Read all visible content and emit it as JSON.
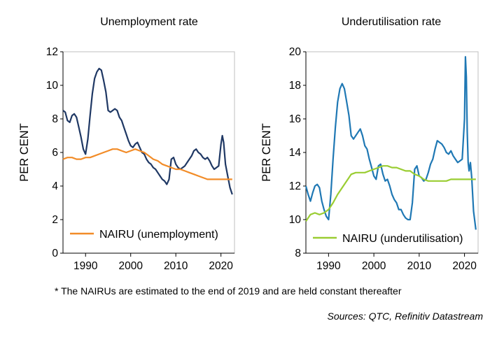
{
  "chart_data": [
    {
      "type": "line",
      "title": "Unemployment rate",
      "ylabel": "PER CENT",
      "xlim": [
        1985,
        2023
      ],
      "ylim": [
        0,
        12
      ],
      "yticks": [
        0,
        2,
        4,
        6,
        8,
        10,
        12
      ],
      "xticks": [
        1990,
        2000,
        2010,
        2020
      ],
      "legend": "bottom-left",
      "series": [
        {
          "name": "",
          "color": "#1f3864",
          "x": [
            1985,
            1985.5,
            1986,
            1986.5,
            1987,
            1987.5,
            1988,
            1988.5,
            1989,
            1989.5,
            1990,
            1990.5,
            1991,
            1991.5,
            1992,
            1992.5,
            1993,
            1993.5,
            1994,
            1994.5,
            1995,
            1995.5,
            1996,
            1996.5,
            1997,
            1997.5,
            1998,
            1998.5,
            1999,
            1999.5,
            2000,
            2000.5,
            2001,
            2001.5,
            2002,
            2002.5,
            2003,
            2003.5,
            2004,
            2004.5,
            2005,
            2005.5,
            2006,
            2006.5,
            2007,
            2007.5,
            2008,
            2008.5,
            2009,
            2009.5,
            2010,
            2010.5,
            2011,
            2011.5,
            2012,
            2012.5,
            2013,
            2013.5,
            2014,
            2014.5,
            2015,
            2015.5,
            2016,
            2016.5,
            2017,
            2017.5,
            2018,
            2018.5,
            2019,
            2019.5,
            2020,
            2020.3,
            2020.6,
            2021,
            2021.5,
            2022,
            2022.5
          ],
          "values": [
            8.5,
            8.4,
            7.9,
            7.8,
            8.2,
            8.3,
            8.1,
            7.5,
            6.9,
            6.2,
            5.9,
            6.8,
            8.2,
            9.5,
            10.4,
            10.8,
            11.0,
            10.9,
            10.3,
            9.6,
            8.5,
            8.4,
            8.5,
            8.6,
            8.5,
            8.1,
            7.9,
            7.5,
            7.1,
            6.7,
            6.4,
            6.3,
            6.5,
            6.6,
            6.3,
            6.0,
            5.9,
            5.6,
            5.4,
            5.3,
            5.1,
            5.0,
            4.8,
            4.6,
            4.4,
            4.3,
            4.1,
            4.4,
            5.6,
            5.7,
            5.3,
            5.1,
            5.0,
            5.1,
            5.2,
            5.4,
            5.6,
            5.8,
            6.1,
            6.2,
            6.0,
            5.9,
            5.7,
            5.6,
            5.7,
            5.5,
            5.2,
            5.0,
            5.1,
            5.2,
            6.5,
            7.0,
            6.6,
            5.3,
            4.6,
            3.9,
            3.5
          ]
        },
        {
          "name": "NAIRU (unemployment)",
          "color": "#f28c28",
          "x": [
            1985,
            1986,
            1987,
            1988,
            1989,
            1990,
            1991,
            1992,
            1993,
            1994,
            1995,
            1996,
            1997,
            1998,
            1999,
            2000,
            2001,
            2002,
            2003,
            2004,
            2005,
            2006,
            2007,
            2008,
            2009,
            2010,
            2011,
            2012,
            2013,
            2014,
            2015,
            2016,
            2017,
            2018,
            2019,
            2020,
            2021,
            2022,
            2022.5
          ],
          "values": [
            5.6,
            5.7,
            5.7,
            5.6,
            5.6,
            5.7,
            5.7,
            5.8,
            5.9,
            6.0,
            6.1,
            6.2,
            6.2,
            6.1,
            6.0,
            6.1,
            6.2,
            6.1,
            6.0,
            5.8,
            5.6,
            5.5,
            5.3,
            5.2,
            5.1,
            5.0,
            5.0,
            4.9,
            4.8,
            4.7,
            4.6,
            4.5,
            4.4,
            4.4,
            4.4,
            4.4,
            4.4,
            4.4,
            4.4
          ]
        }
      ]
    },
    {
      "type": "line",
      "title": "Underutilisation rate",
      "ylabel": "PER CENT",
      "xlim": [
        1985,
        2023
      ],
      "ylim": [
        8,
        20
      ],
      "yticks": [
        8,
        10,
        12,
        14,
        16,
        18,
        20
      ],
      "xticks": [
        1990,
        2000,
        2010,
        2020
      ],
      "legend": "bottom-left",
      "series": [
        {
          "name": "",
          "color": "#1f78b4",
          "x": [
            1985,
            1985.5,
            1986,
            1986.5,
            1987,
            1987.5,
            1988,
            1988.5,
            1989,
            1989.5,
            1990,
            1990.5,
            1991,
            1991.5,
            1992,
            1992.5,
            1993,
            1993.5,
            1994,
            1994.5,
            1995,
            1995.5,
            1996,
            1996.5,
            1997,
            1997.5,
            1998,
            1998.5,
            1999,
            1999.5,
            2000,
            2000.5,
            2001,
            2001.5,
            2002,
            2002.5,
            2003,
            2003.5,
            2004,
            2004.5,
            2005,
            2005.5,
            2006,
            2006.5,
            2007,
            2007.5,
            2008,
            2008.5,
            2009,
            2009.5,
            2010,
            2010.5,
            2011,
            2011.5,
            2012,
            2012.5,
            2013,
            2013.5,
            2014,
            2014.5,
            2015,
            2015.5,
            2016,
            2016.5,
            2017,
            2017.5,
            2018,
            2018.5,
            2019,
            2019.5,
            2020,
            2020.2,
            2020.4,
            2020.6,
            2020.8,
            2021,
            2021.3,
            2021.6,
            2022,
            2022.5
          ],
          "values": [
            12.0,
            11.5,
            11.1,
            11.6,
            12.0,
            12.1,
            11.9,
            11.1,
            10.6,
            10.2,
            10.0,
            11.5,
            13.6,
            15.5,
            17.0,
            17.8,
            18.1,
            17.8,
            17.0,
            16.2,
            15.0,
            14.8,
            15.0,
            15.2,
            15.4,
            15.0,
            14.4,
            14.2,
            13.6,
            13.1,
            12.6,
            12.4,
            13.2,
            13.3,
            12.7,
            12.3,
            12.4,
            12.0,
            11.5,
            11.2,
            11.0,
            10.6,
            10.6,
            10.3,
            10.1,
            10.0,
            10.0,
            11.0,
            13.0,
            13.2,
            12.6,
            12.5,
            12.3,
            12.4,
            12.8,
            13.3,
            13.6,
            14.2,
            14.7,
            14.6,
            14.5,
            14.3,
            14.0,
            13.9,
            14.1,
            13.8,
            13.6,
            13.4,
            13.5,
            13.6,
            16.0,
            19.7,
            18.5,
            15.2,
            13.4,
            12.9,
            13.4,
            12.5,
            10.5,
            9.4
          ]
        },
        {
          "name": "NAIRU (underutilisation)",
          "color": "#9acd32",
          "x": [
            1985,
            1986,
            1987,
            1988,
            1989,
            1990,
            1991,
            1992,
            1993,
            1994,
            1995,
            1996,
            1997,
            1998,
            1999,
            2000,
            2001,
            2002,
            2003,
            2004,
            2005,
            2006,
            2007,
            2008,
            2009,
            2010,
            2011,
            2012,
            2013,
            2014,
            2015,
            2016,
            2017,
            2018,
            2019,
            2020,
            2021,
            2022,
            2022.5
          ],
          "values": [
            9.9,
            10.3,
            10.4,
            10.3,
            10.4,
            10.6,
            11.0,
            11.5,
            11.9,
            12.3,
            12.7,
            12.8,
            12.8,
            12.8,
            12.9,
            13.0,
            13.1,
            13.2,
            13.2,
            13.1,
            13.1,
            13.0,
            12.9,
            12.9,
            12.7,
            12.6,
            12.4,
            12.3,
            12.3,
            12.3,
            12.3,
            12.3,
            12.4,
            12.4,
            12.4,
            12.4,
            12.4,
            12.4,
            12.4
          ]
        }
      ]
    }
  ],
  "footnote": "* The NAIRUs are estimated to the end of 2019 and are held constant thereafter",
  "sources": "Sources: QTC, Refinitiv Datastream"
}
